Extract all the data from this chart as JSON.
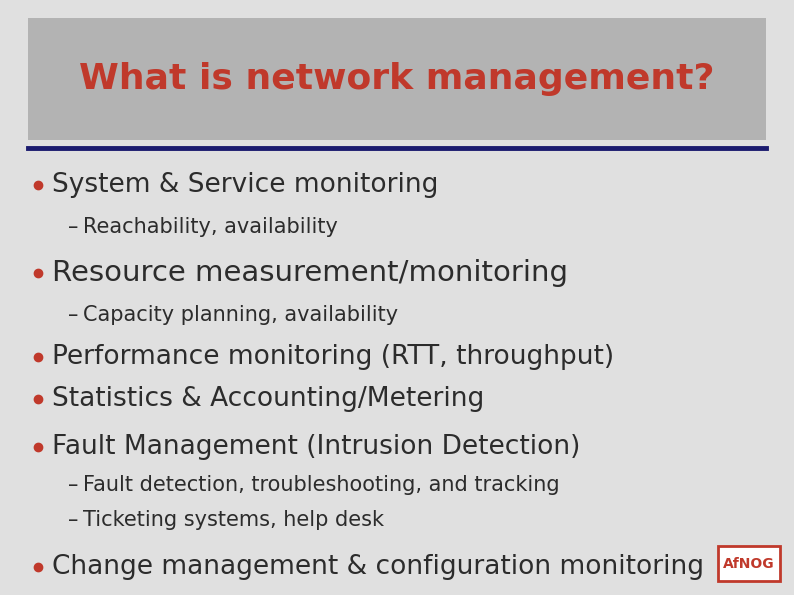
{
  "title": "What is network management?",
  "title_color": "#c0392b",
  "title_bg_color": "#b3b3b3",
  "title_fontsize": 26,
  "header_line_color": "#1a1a6e",
  "bg_color": "#e0e0e0",
  "bullet_color": "#c0392b",
  "text_color": "#2c2c2c",
  "afnog_color": "#c0392b",
  "items": [
    {
      "level": 1,
      "text": "System & Service monitoring",
      "fontsize": 19,
      "bold": false
    },
    {
      "level": 2,
      "text": "Reachability, availability",
      "fontsize": 15,
      "bold": false
    },
    {
      "level": 1,
      "text": "Resource measurement/monitoring",
      "fontsize": 21,
      "bold": false
    },
    {
      "level": 2,
      "text": "Capacity planning, availability",
      "fontsize": 15,
      "bold": false
    },
    {
      "level": 1,
      "text": "Performance monitoring (RTT, throughput)",
      "fontsize": 19,
      "bold": false
    },
    {
      "level": 1,
      "text": "Statistics & Accounting/Metering",
      "fontsize": 19,
      "bold": false
    },
    {
      "level": 1,
      "text": "Fault Management (Intrusion Detection)",
      "fontsize": 19,
      "bold": false
    },
    {
      "level": 2,
      "text": "Fault detection, troubleshooting, and tracking",
      "fontsize": 15,
      "bold": false
    },
    {
      "level": 2,
      "text": "Ticketing systems, help desk",
      "fontsize": 15,
      "bold": false
    },
    {
      "level": 1,
      "text": "Change management & configuration monitoring",
      "fontsize": 19,
      "bold": false
    }
  ]
}
